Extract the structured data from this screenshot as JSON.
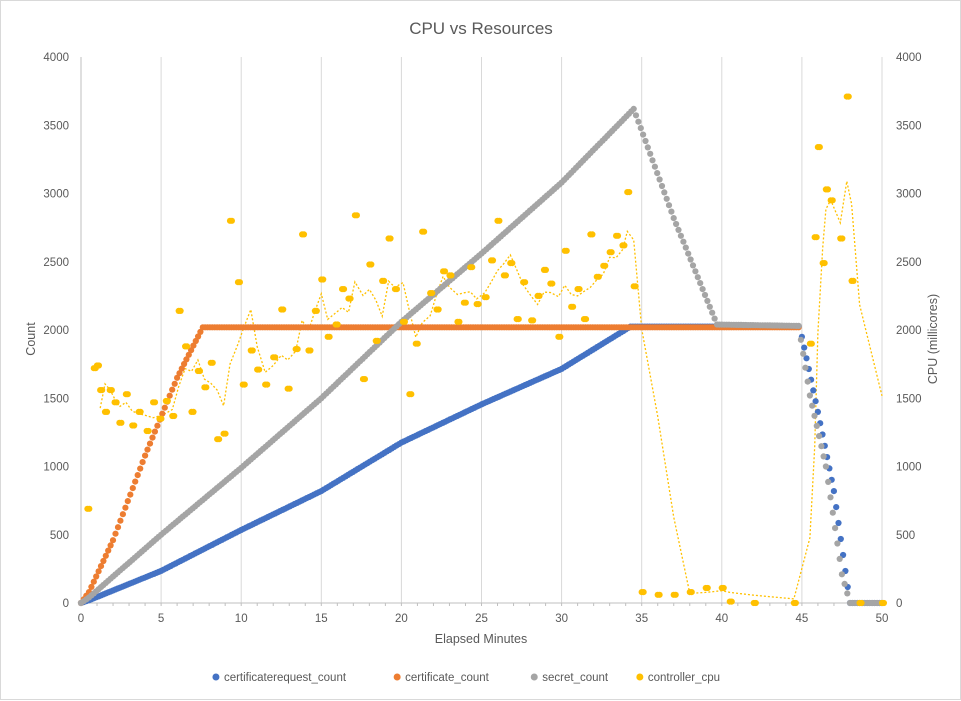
{
  "chart_data": {
    "type": "scatter",
    "title": "CPU vs Resources",
    "xlabel": "Elapsed Minutes",
    "ylabel": "Count",
    "y2label": "CPU (millicores)",
    "xlim": [
      0,
      50
    ],
    "ylim": [
      0,
      4000
    ],
    "y2lim": [
      0,
      4000
    ],
    "x_ticks": [
      "0",
      "5",
      "10",
      "15",
      "20",
      "25",
      "30",
      "35",
      "40",
      "45",
      "50"
    ],
    "y_ticks": [
      "0",
      "500",
      "1000",
      "1500",
      "2000",
      "2500",
      "3000",
      "3500",
      "4000"
    ],
    "y2_ticks": [
      "0",
      "500",
      "1000",
      "1500",
      "2000",
      "2500",
      "3000",
      "3500",
      "4000"
    ],
    "grid": "vertical",
    "legend_position": "bottom",
    "series": [
      {
        "name": "certificaterequest_count",
        "color": "#4472C4",
        "axis": "left",
        "marker": "circle",
        "points": [
          [
            0,
            0
          ],
          [
            0.5,
            20
          ],
          [
            5,
            235
          ],
          [
            10,
            535
          ],
          [
            15,
            820
          ],
          [
            20,
            1175
          ],
          [
            25,
            1455
          ],
          [
            30,
            1715
          ],
          [
            34.3,
            2025
          ],
          [
            44.8,
            2025
          ],
          [
            45,
            1950
          ],
          [
            46,
            1400
          ],
          [
            47,
            820
          ],
          [
            48,
            0
          ],
          [
            50,
            0
          ]
        ]
      },
      {
        "name": "certificate_count",
        "color": "#ED7D31",
        "axis": "left",
        "marker": "circle",
        "points": [
          [
            0,
            0
          ],
          [
            0.5,
            80
          ],
          [
            2,
            460
          ],
          [
            4,
            1080
          ],
          [
            6,
            1650
          ],
          [
            7.6,
            2020
          ],
          [
            20,
            2020
          ],
          [
            30,
            2020
          ],
          [
            40,
            2020
          ],
          [
            44.8,
            2020
          ]
        ]
      },
      {
        "name": "secret_count",
        "color": "#A5A5A5",
        "axis": "left",
        "marker": "circle",
        "points": [
          [
            0,
            0
          ],
          [
            0.5,
            40
          ],
          [
            5,
            500
          ],
          [
            10,
            990
          ],
          [
            15,
            1500
          ],
          [
            20,
            2060
          ],
          [
            25,
            2560
          ],
          [
            30,
            3080
          ],
          [
            34.5,
            3620
          ],
          [
            37,
            2820
          ],
          [
            39.7,
            2040
          ],
          [
            44.8,
            2030
          ],
          [
            45.5,
            1520
          ],
          [
            46.5,
            1000
          ],
          [
            47.5,
            210
          ],
          [
            48,
            0
          ],
          [
            50,
            0
          ]
        ]
      },
      {
        "name": "controller_cpu",
        "color": "#FFC000",
        "axis": "right",
        "marker": "circle",
        "trendline": "dotted",
        "points": [
          [
            0.4,
            690
          ],
          [
            0.8,
            1720
          ],
          [
            1.0,
            1740
          ],
          [
            1.2,
            1560
          ],
          [
            1.5,
            1400
          ],
          [
            1.8,
            1560
          ],
          [
            2.1,
            1470
          ],
          [
            2.4,
            1320
          ],
          [
            2.8,
            1530
          ],
          [
            3.2,
            1300
          ],
          [
            3.6,
            1400
          ],
          [
            4.1,
            1260
          ],
          [
            4.5,
            1470
          ],
          [
            4.9,
            1350
          ],
          [
            5.3,
            1480
          ],
          [
            5.7,
            1370
          ],
          [
            6.1,
            2140
          ],
          [
            6.5,
            1880
          ],
          [
            6.9,
            1400
          ],
          [
            7.3,
            1700
          ],
          [
            7.7,
            1580
          ],
          [
            8.1,
            1760
          ],
          [
            8.5,
            1200
          ],
          [
            8.9,
            1240
          ],
          [
            9.3,
            2800
          ],
          [
            9.8,
            2350
          ],
          [
            10.1,
            1600
          ],
          [
            10.6,
            1850
          ],
          [
            11.0,
            1710
          ],
          [
            11.5,
            1600
          ],
          [
            12.0,
            1800
          ],
          [
            12.5,
            2150
          ],
          [
            12.9,
            1570
          ],
          [
            13.4,
            1860
          ],
          [
            13.8,
            2700
          ],
          [
            14.2,
            1850
          ],
          [
            14.6,
            2140
          ],
          [
            15.0,
            2370
          ],
          [
            15.4,
            1950
          ],
          [
            15.9,
            2040
          ],
          [
            16.3,
            2300
          ],
          [
            16.7,
            2230
          ],
          [
            17.1,
            2840
          ],
          [
            17.6,
            1640
          ],
          [
            18.0,
            2480
          ],
          [
            18.4,
            1920
          ],
          [
            18.8,
            2360
          ],
          [
            19.2,
            2670
          ],
          [
            19.6,
            2300
          ],
          [
            20.1,
            2060
          ],
          [
            20.5,
            1530
          ],
          [
            20.9,
            1900
          ],
          [
            21.3,
            2720
          ],
          [
            21.8,
            2270
          ],
          [
            22.2,
            2150
          ],
          [
            22.6,
            2430
          ],
          [
            23.0,
            2400
          ],
          [
            23.5,
            2060
          ],
          [
            23.9,
            2200
          ],
          [
            24.3,
            2460
          ],
          [
            24.7,
            2190
          ],
          [
            25.2,
            2240
          ],
          [
            25.6,
            2510
          ],
          [
            26.0,
            2800
          ],
          [
            26.4,
            2400
          ],
          [
            26.8,
            2490
          ],
          [
            27.2,
            2080
          ],
          [
            27.6,
            2350
          ],
          [
            28.1,
            2070
          ],
          [
            28.5,
            2250
          ],
          [
            28.9,
            2440
          ],
          [
            29.3,
            2340
          ],
          [
            29.8,
            1950
          ],
          [
            30.2,
            2580
          ],
          [
            30.6,
            2170
          ],
          [
            31.0,
            2300
          ],
          [
            31.4,
            2080
          ],
          [
            31.8,
            2700
          ],
          [
            32.2,
            2390
          ],
          [
            32.6,
            2470
          ],
          [
            33.0,
            2570
          ],
          [
            33.4,
            2690
          ],
          [
            33.8,
            2620
          ],
          [
            34.1,
            3010
          ],
          [
            34.5,
            2320
          ],
          [
            35.0,
            80
          ],
          [
            36.0,
            60
          ],
          [
            37.0,
            60
          ],
          [
            38.0,
            80
          ],
          [
            39.0,
            110
          ],
          [
            40.0,
            110
          ],
          [
            40.5,
            10
          ],
          [
            42.0,
            0
          ],
          [
            44.5,
            0
          ],
          [
            45.5,
            1900
          ],
          [
            45.8,
            2680
          ],
          [
            46.0,
            3340
          ],
          [
            46.3,
            2490
          ],
          [
            46.5,
            3030
          ],
          [
            46.8,
            2950
          ],
          [
            47.4,
            2670
          ],
          [
            47.8,
            3710
          ],
          [
            48.1,
            2360
          ],
          [
            48.6,
            0
          ],
          [
            50,
            0
          ]
        ]
      }
    ]
  }
}
